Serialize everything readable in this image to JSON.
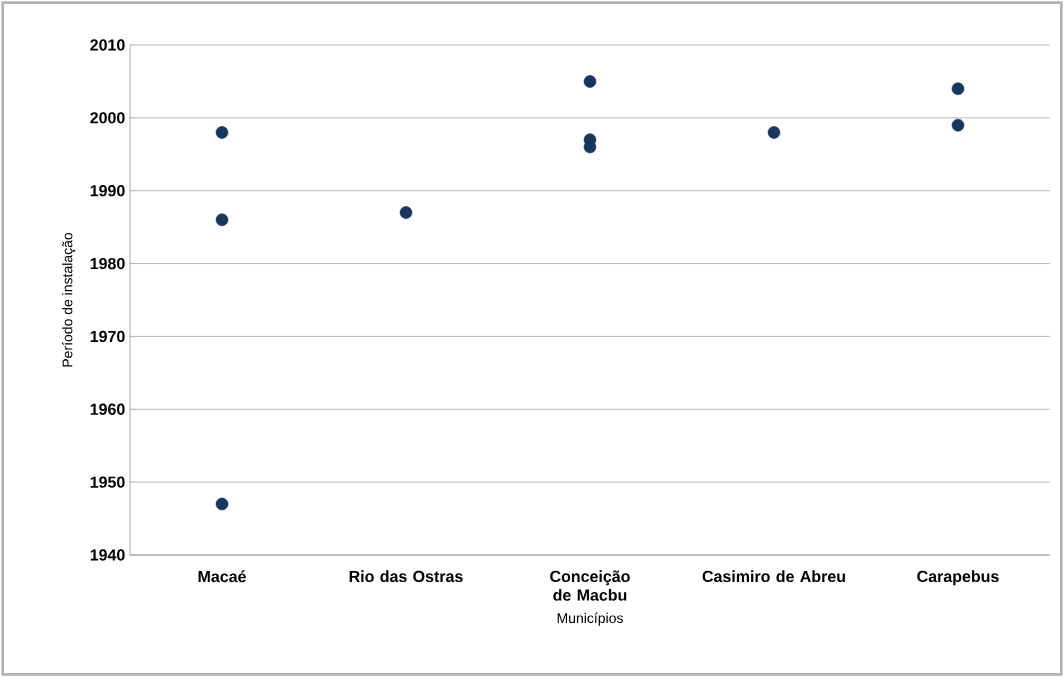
{
  "chart_data": {
    "type": "scatter",
    "xlabel": "Municípios",
    "ylabel": "Período de instalação",
    "categories": [
      "Macaé",
      "Rio das Ostras",
      "Conceição de Macbu",
      "Casimiro de Abreu",
      "Carapebus"
    ],
    "series": [
      {
        "color": "#17375e",
        "values": [
          1998,
          1987,
          2005,
          1998,
          2004
        ]
      },
      {
        "color": "#17375e",
        "values": [
          1986,
          null,
          1997,
          null,
          1999
        ]
      },
      {
        "color": "#17375e",
        "values": [
          1947,
          null,
          1996,
          null,
          null
        ]
      }
    ],
    "ylim": [
      1940,
      2010
    ],
    "yticks": [
      1940,
      1950,
      1960,
      1970,
      1980,
      1990,
      2000,
      2010
    ],
    "grid": "y"
  }
}
